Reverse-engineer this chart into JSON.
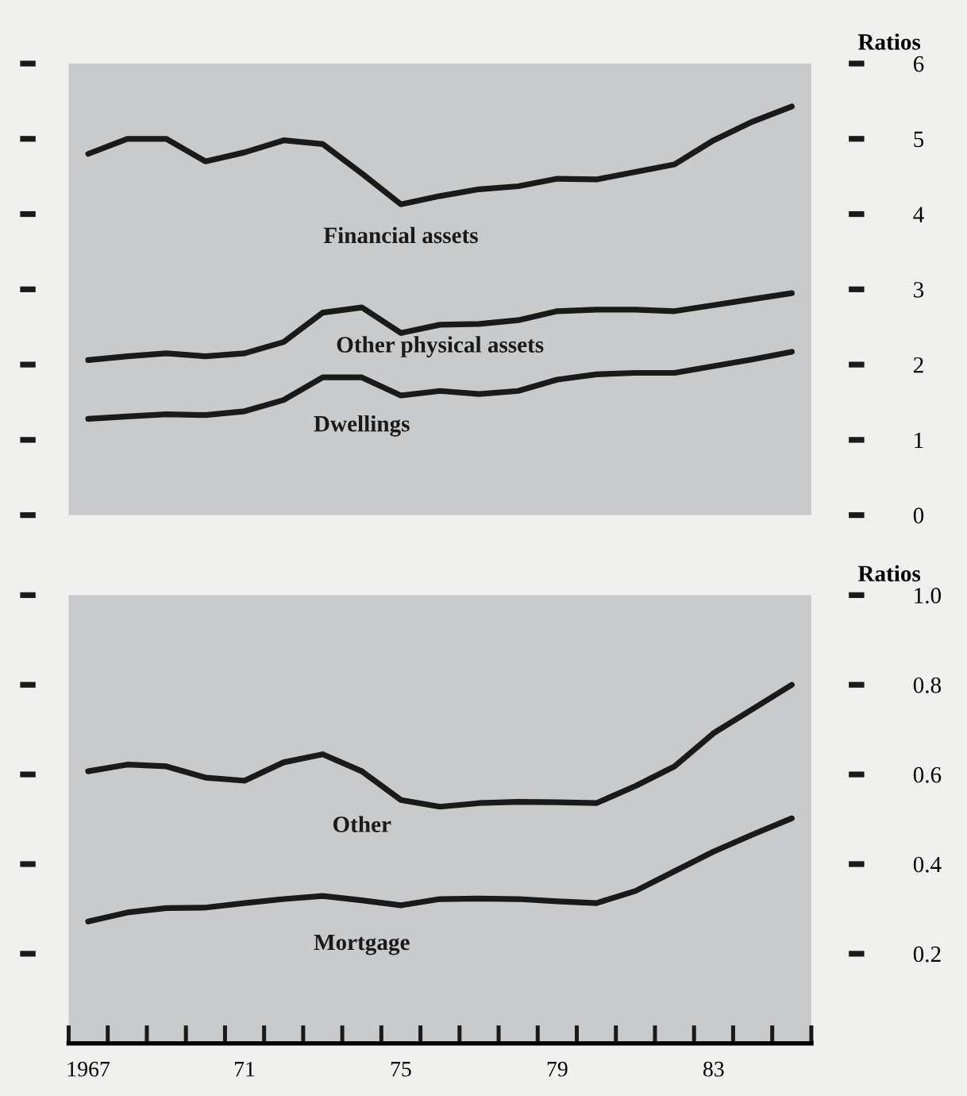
{
  "chart_data": [
    {
      "type": "line",
      "ylabel": "Ratios",
      "x": [
        1967,
        1968,
        1969,
        1970,
        1971,
        1972,
        1973,
        1974,
        1975,
        1976,
        1977,
        1978,
        1979,
        1980,
        1981,
        1982,
        1983,
        1984,
        1985
      ],
      "series": [
        {
          "name": "Financial assets",
          "color": "#1a1a1a",
          "values": [
            4.8,
            5.0,
            5.0,
            4.7,
            4.82,
            4.98,
            4.93,
            4.54,
            4.13,
            4.24,
            4.33,
            4.37,
            4.47,
            4.46,
            4.56,
            4.66,
            4.98,
            5.23,
            5.43
          ]
        },
        {
          "name": "Other physical assets",
          "color": "#1a1a1a",
          "values": [
            2.06,
            2.11,
            2.15,
            2.11,
            2.15,
            2.3,
            2.69,
            2.76,
            2.42,
            2.53,
            2.54,
            2.59,
            2.71,
            2.73,
            2.73,
            2.71,
            2.79,
            2.87,
            2.95
          ]
        },
        {
          "name": "Dwellings",
          "color": "#1a1a1a",
          "values": [
            1.28,
            1.31,
            1.34,
            1.33,
            1.38,
            1.53,
            1.83,
            1.83,
            1.59,
            1.65,
            1.61,
            1.65,
            1.8,
            1.87,
            1.89,
            1.89,
            1.98,
            2.07,
            2.17
          ]
        }
      ],
      "xlim": [
        1966.5,
        1985.5
      ],
      "ylim": [
        0,
        6
      ],
      "yticks": [
        0,
        1,
        2,
        3,
        4,
        5,
        6
      ],
      "tick_labels": "y",
      "grid": false,
      "legend": false
    },
    {
      "type": "line",
      "ylabel": "Ratios",
      "x": [
        1967,
        1968,
        1969,
        1970,
        1971,
        1972,
        1973,
        1974,
        1975,
        1976,
        1977,
        1978,
        1979,
        1980,
        1981,
        1982,
        1983,
        1984,
        1985
      ],
      "series": [
        {
          "name": "Other",
          "color": "#1a1a1a",
          "values": [
            0.607,
            0.622,
            0.618,
            0.593,
            0.586,
            0.627,
            0.645,
            0.607,
            0.543,
            0.528,
            0.536,
            0.539,
            0.538,
            0.536,
            0.574,
            0.618,
            0.692,
            0.746,
            0.8
          ]
        },
        {
          "name": "Mortgage",
          "color": "#1a1a1a",
          "values": [
            0.272,
            0.292,
            0.302,
            0.303,
            0.313,
            0.322,
            0.329,
            0.319,
            0.308,
            0.322,
            0.323,
            0.322,
            0.317,
            0.313,
            0.34,
            0.384,
            0.428,
            0.466,
            0.502
          ]
        }
      ],
      "xlim": [
        1966.5,
        1985.5
      ],
      "ylim": [
        0,
        1.0
      ],
      "yticks": [
        0.2,
        0.4,
        0.6,
        0.8,
        {
          "value": 1.0,
          "label": "1.0"
        }
      ],
      "xticks": [
        1967,
        {
          "value": 1971,
          "label": "71"
        },
        {
          "value": 1975,
          "label": "75"
        },
        {
          "value": 1979,
          "label": "79"
        },
        {
          "value": 1983,
          "label": "83"
        }
      ],
      "grid": false,
      "legend": false
    }
  ]
}
